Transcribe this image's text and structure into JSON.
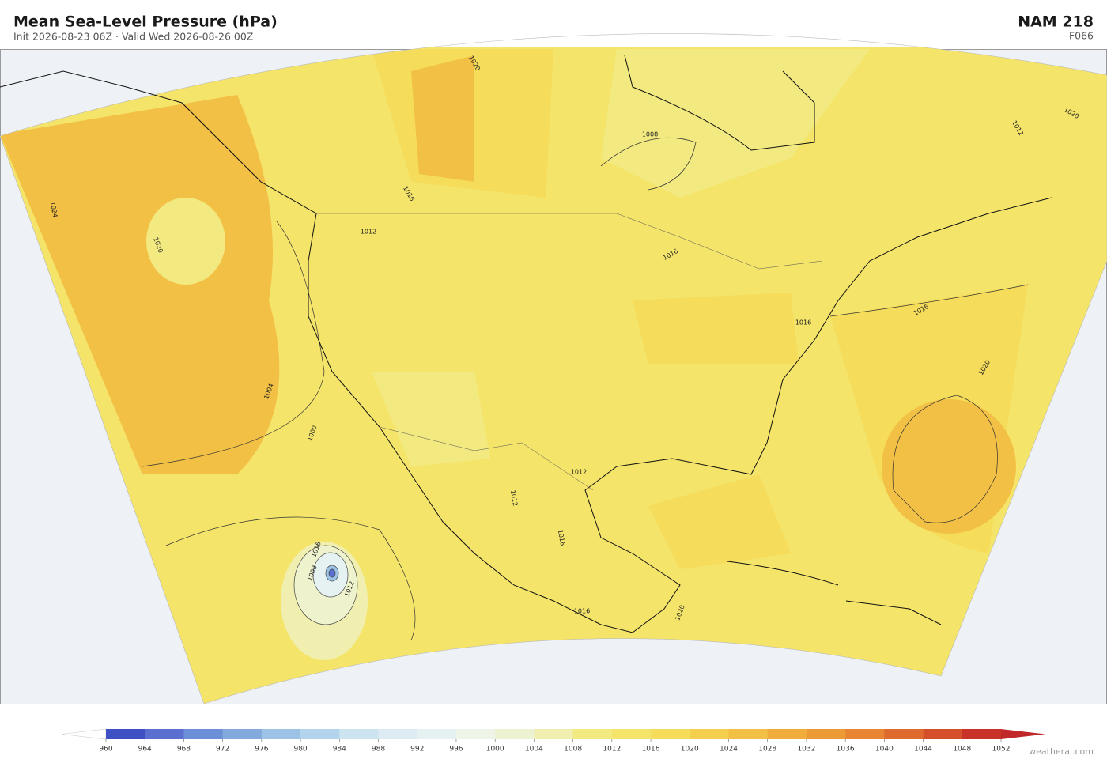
{
  "header": {
    "title": "Mean Sea-Level Pressure  (hPa)",
    "subtitle": "Init 2026-08-23 06Z  ·  Valid Wed 2026-08-26 00Z",
    "model": "NAM  218",
    "forecast": "F066"
  },
  "map": {
    "contour_labels": [
      "1024",
      "1020",
      "1016",
      "1012",
      "1008",
      "1004",
      "1000",
      "1020",
      "1016",
      "1012",
      "1008",
      "1016",
      "1020",
      "1016",
      "1012",
      "1020",
      "1016",
      "1012",
      "1012",
      "1016",
      "1020",
      "1016"
    ]
  },
  "colorbar": {
    "ticks": [
      960,
      964,
      968,
      972,
      976,
      980,
      984,
      988,
      992,
      996,
      1000,
      1004,
      1008,
      1012,
      1016,
      1020,
      1024,
      1028,
      1032,
      1036,
      1040,
      1044,
      1048,
      1052
    ],
    "colors": [
      "#3f4fc4",
      "#5a6fcf",
      "#6d8fd8",
      "#84a9dc",
      "#9cc2e6",
      "#b4d4ee",
      "#cce3f0",
      "#dcecf2",
      "#e6f2f2",
      "#eef5e8",
      "#edf3d2",
      "#f0efb0",
      "#f2ea80",
      "#f4e46a",
      "#f5dc5a",
      "#f4cf4e",
      "#f2c044",
      "#f0ad3c",
      "#ec9a36",
      "#e78532",
      "#df6a2e",
      "#d5502a",
      "#c83228"
    ],
    "under_color": "#ffffff",
    "over_color": "#c0282a"
  },
  "footer": {
    "credit": "weatherai.com"
  }
}
